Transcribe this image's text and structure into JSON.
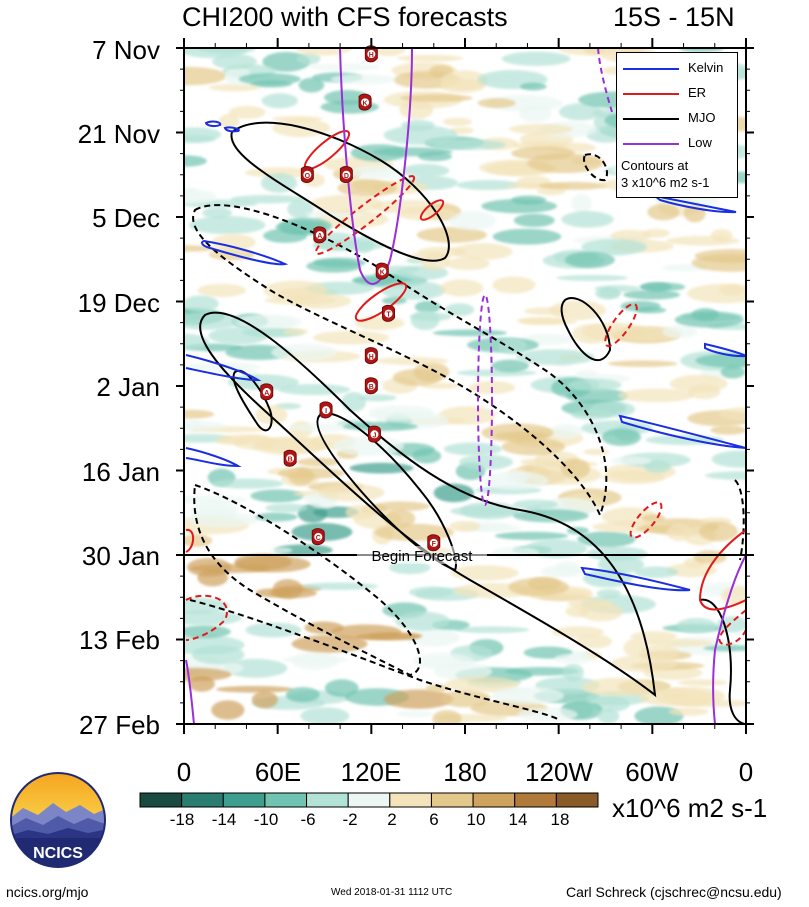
{
  "title": {
    "left": "CHI200 with CFS forecasts",
    "right": "15S - 15N"
  },
  "chart_data": {
    "type": "heatmap",
    "description_style": "Hovmoller",
    "y_axis": {
      "tick_labels": [
        "7 Nov",
        "21 Nov",
        "5 Dec",
        "19 Dec",
        "2 Jan",
        "16 Jan",
        "30 Jan",
        "13 Feb",
        "27 Feb"
      ],
      "direction": "time increasing downward"
    },
    "x_axis": {
      "tick_labels": [
        "0",
        "60E",
        "120E",
        "180",
        "120W",
        "60W",
        "0"
      ],
      "range_degrees_east": [
        0,
        360
      ]
    },
    "forecast_marker": {
      "label": "Begin Forecast",
      "date": "30 Jan"
    },
    "colorbar": {
      "levels": [
        "-18",
        "-14",
        "-10",
        "-6",
        "-2",
        "2",
        "6",
        "10",
        "14",
        "18"
      ],
      "colors": [
        "#1a4a40",
        "#2b7d6f",
        "#3f9f8e",
        "#71c4b1",
        "#b3e2d6",
        "#ecf7f3",
        "#f3e4bb",
        "#e4c98c",
        "#cfa25e",
        "#b07a3a",
        "#8a5a28"
      ],
      "units": "x10^6 m2 s-1"
    },
    "legend": {
      "entries": [
        {
          "name": "Kelvin",
          "color": "#1a2fe0"
        },
        {
          "name": "ER",
          "color": "#e01a1a"
        },
        {
          "name": "MJO",
          "color": "#000000"
        },
        {
          "name": "Low",
          "color": "#9a2fd8"
        }
      ],
      "note": [
        "Contours at",
        "3 x10^6 m2 s-1"
      ],
      "position": "top-right"
    },
    "storm_markers": [
      {
        "letter": "H",
        "lon": 120,
        "date": "8 Nov"
      },
      {
        "letter": "K",
        "lon": 116,
        "date": "16 Nov"
      },
      {
        "letter": "O",
        "lon": 79,
        "date": "28 Nov"
      },
      {
        "letter": "D",
        "lon": 104,
        "date": "28 Nov"
      },
      {
        "letter": "A",
        "lon": 87,
        "date": "8 Dec"
      },
      {
        "letter": "K",
        "lon": 127,
        "date": "14 Dec"
      },
      {
        "letter": "T",
        "lon": 131,
        "date": "21 Dec"
      },
      {
        "letter": "H",
        "lon": 120,
        "date": "28 Dec"
      },
      {
        "letter": "B",
        "lon": 120,
        "date": "2 Jan"
      },
      {
        "letter": "A",
        "lon": 53,
        "date": "3 Jan"
      },
      {
        "letter": "I",
        "lon": 91,
        "date": "6 Jan"
      },
      {
        "letter": "J",
        "lon": 122,
        "date": "10 Jan"
      },
      {
        "letter": "B",
        "lon": 68,
        "date": "14 Jan"
      },
      {
        "letter": "C",
        "lon": 86,
        "date": "27 Jan"
      },
      {
        "letter": "F",
        "lon": 160,
        "date": "28 Jan"
      }
    ]
  },
  "colorbar_tick_labels": [
    "-18",
    "-14",
    "-10",
    "-6",
    "-2",
    "2",
    "6",
    "10",
    "14",
    "18"
  ],
  "footer": {
    "left": "ncics.org/mjo",
    "middle": "Wed 2018-01-31 1112 UTC",
    "right": "Carl Schreck (cjschrec@ncsu.edu)"
  },
  "logo": {
    "text": "NCICS"
  }
}
